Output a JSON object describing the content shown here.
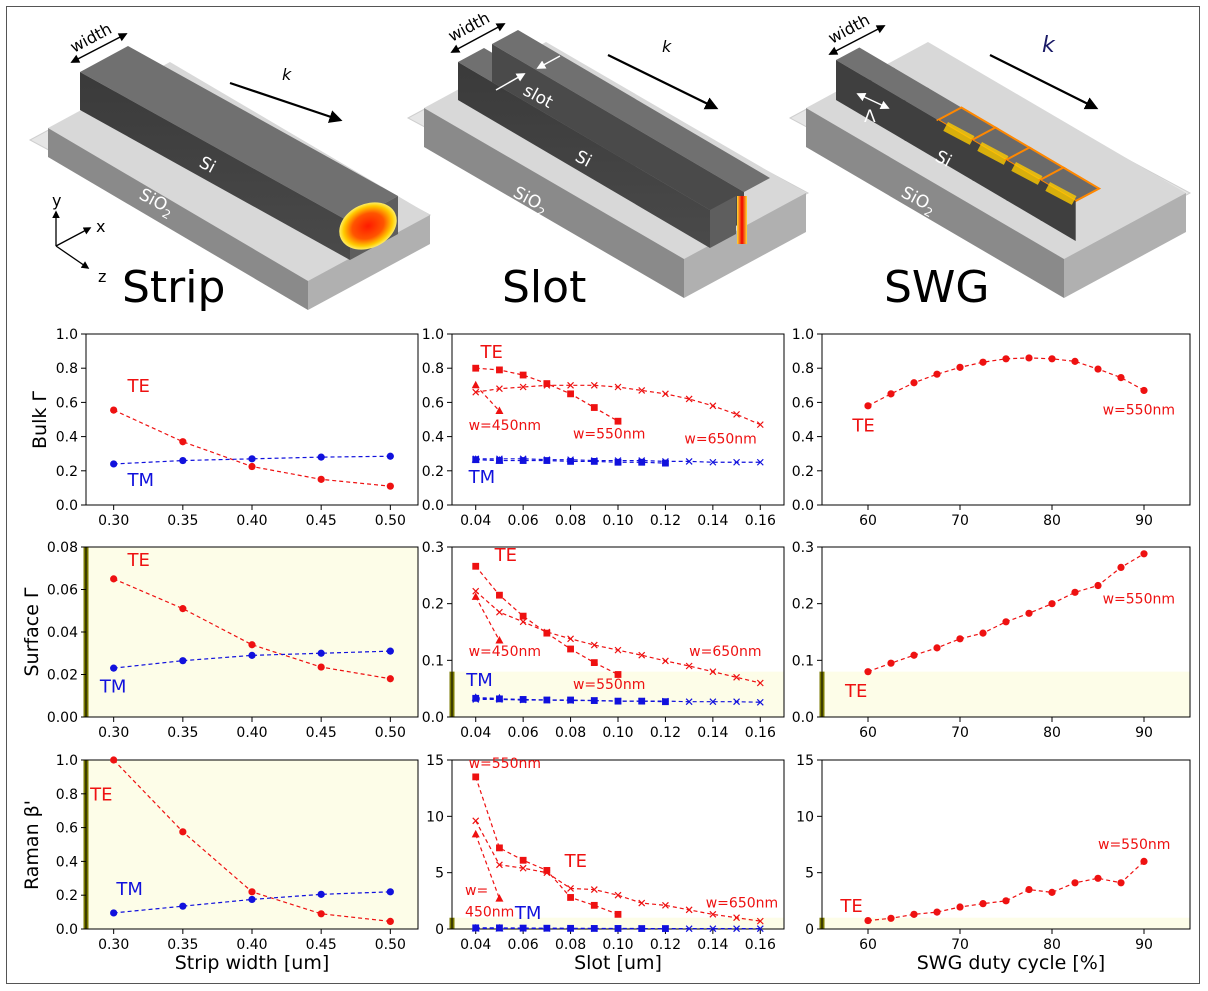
{
  "waveguide_titles": [
    "Strip",
    "Slot",
    "SWG"
  ],
  "geometry_labels": {
    "width": "width",
    "k": "k",
    "si": "Si",
    "sio2_base": "SiO",
    "sio2_sub": "2",
    "slot": "slot",
    "lambda": "Λ",
    "axis_x": "x",
    "axis_y": "y",
    "axis_z": "z"
  },
  "row_labels": [
    "Bulk Γ",
    "Surface Γ",
    "Raman β'"
  ],
  "column_xlabels": [
    "Strip width [um]",
    "Slot [um]",
    "SWG duty cycle [%]"
  ],
  "colors": {
    "te": "#ee1111",
    "tm": "#1111dd",
    "shade": "#fdfde8",
    "shade_edge": "#7a7a00",
    "wg": "#5b5b5b",
    "sub": "#9a9a9a"
  },
  "chart_data": [
    {
      "type": "line",
      "row": 0,
      "col": 0,
      "ylabel": "Bulk Γ",
      "xlabel": "",
      "xlim": [
        0.28,
        0.52
      ],
      "ylim": [
        0,
        1
      ],
      "xticks": [
        "0.30",
        "0.35",
        "0.40",
        "0.45",
        "0.50"
      ],
      "yticks": [
        "0.0",
        "0.2",
        "0.4",
        "0.6",
        "0.8",
        "1.0"
      ],
      "series": [
        {
          "pol": "te",
          "marker": "circle",
          "x": [
            0.3,
            0.35,
            0.4,
            0.45,
            0.5
          ],
          "y": [
            0.555,
            0.37,
            0.225,
            0.15,
            0.11
          ]
        },
        {
          "pol": "tm",
          "marker": "circle",
          "x": [
            0.3,
            0.35,
            0.4,
            0.45,
            0.5
          ],
          "y": [
            0.24,
            0.26,
            0.27,
            0.28,
            0.285
          ]
        }
      ],
      "annotations": [
        {
          "text": "TE",
          "pol": "te",
          "size": "big",
          "x": 0.31,
          "y": 0.66
        },
        {
          "text": "TM",
          "pol": "tm",
          "size": "big",
          "x": 0.31,
          "y": 0.11
        }
      ]
    },
    {
      "type": "line",
      "row": 0,
      "col": 1,
      "ylabel": "",
      "xlabel": "",
      "xlim": [
        0.03,
        0.17
      ],
      "ylim": [
        0,
        1
      ],
      "xticks": [
        "0.04",
        "0.06",
        "0.08",
        "0.10",
        "0.12",
        "0.14",
        "0.16"
      ],
      "yticks": [
        "0.0",
        "0.2",
        "0.4",
        "0.6",
        "0.8",
        "1.0"
      ],
      "series": [
        {
          "pol": "te",
          "marker": "triangle",
          "x": [
            0.04,
            0.05
          ],
          "y": [
            0.7,
            0.55
          ]
        },
        {
          "pol": "te",
          "marker": "square",
          "x": [
            0.04,
            0.05,
            0.06,
            0.07,
            0.08,
            0.09,
            0.1
          ],
          "y": [
            0.8,
            0.79,
            0.76,
            0.71,
            0.65,
            0.57,
            0.49
          ]
        },
        {
          "pol": "te",
          "marker": "x",
          "x": [
            0.04,
            0.05,
            0.06,
            0.07,
            0.08,
            0.09,
            0.1,
            0.11,
            0.12,
            0.13,
            0.14,
            0.15,
            0.16
          ],
          "y": [
            0.66,
            0.68,
            0.69,
            0.7,
            0.7,
            0.7,
            0.69,
            0.67,
            0.65,
            0.62,
            0.58,
            0.53,
            0.47
          ]
        },
        {
          "pol": "tm",
          "marker": "triangle",
          "x": [
            0.04,
            0.05
          ],
          "y": [
            0.265,
            0.26
          ]
        },
        {
          "pol": "tm",
          "marker": "square",
          "x": [
            0.04,
            0.05,
            0.06,
            0.07,
            0.08,
            0.09,
            0.1,
            0.11,
            0.12
          ],
          "y": [
            0.265,
            0.26,
            0.26,
            0.26,
            0.255,
            0.255,
            0.25,
            0.25,
            0.245
          ]
        },
        {
          "pol": "tm",
          "marker": "x",
          "x": [
            0.04,
            0.05,
            0.06,
            0.07,
            0.08,
            0.09,
            0.1,
            0.11,
            0.12,
            0.13,
            0.14,
            0.15,
            0.16
          ],
          "y": [
            0.27,
            0.27,
            0.27,
            0.265,
            0.265,
            0.26,
            0.26,
            0.26,
            0.255,
            0.255,
            0.25,
            0.25,
            0.25
          ]
        }
      ],
      "annotations": [
        {
          "text": "TE",
          "pol": "te",
          "size": "big",
          "x": 0.042,
          "y": 0.86
        },
        {
          "text": "TM",
          "pol": "tm",
          "size": "big",
          "x": 0.037,
          "y": 0.13
        },
        {
          "text": "w=450nm",
          "pol": "te",
          "size": "small",
          "x": 0.037,
          "y": 0.44
        },
        {
          "text": "w=550nm",
          "pol": "te",
          "size": "small",
          "x": 0.081,
          "y": 0.39
        },
        {
          "text": "w=650nm",
          "pol": "te",
          "size": "small",
          "x": 0.128,
          "y": 0.36
        }
      ]
    },
    {
      "type": "line",
      "row": 0,
      "col": 2,
      "ylabel": "",
      "xlabel": "",
      "xlim": [
        55,
        95
      ],
      "ylim": [
        0,
        1
      ],
      "xticks": [
        "60",
        "70",
        "80",
        "90"
      ],
      "yticks": [
        "0.0",
        "0.2",
        "0.4",
        "0.6",
        "0.8",
        "1.0"
      ],
      "series": [
        {
          "pol": "te",
          "marker": "circle",
          "x": [
            60,
            62.5,
            65,
            67.5,
            70,
            72.5,
            75,
            77.5,
            80,
            82.5,
            85,
            87.5,
            90
          ],
          "y": [
            0.58,
            0.65,
            0.715,
            0.765,
            0.805,
            0.835,
            0.855,
            0.86,
            0.855,
            0.84,
            0.795,
            0.745,
            0.67
          ]
        }
      ],
      "annotations": [
        {
          "text": "TE",
          "pol": "te",
          "size": "big",
          "x": 58.3,
          "y": 0.43
        },
        {
          "text": "w=550nm",
          "pol": "te",
          "size": "small",
          "x": 85.5,
          "y": 0.53
        }
      ]
    },
    {
      "type": "line",
      "row": 1,
      "col": 0,
      "ylabel": "Surface Γ",
      "xlabel": "",
      "xlim": [
        0.28,
        0.52
      ],
      "ylim": [
        0,
        0.08
      ],
      "xticks": [
        "0.30",
        "0.35",
        "0.40",
        "0.45",
        "0.50"
      ],
      "yticks": [
        "0.00",
        "0.02",
        "0.04",
        "0.06",
        "0.08"
      ],
      "shade_top": 0.08,
      "series": [
        {
          "pol": "te",
          "marker": "circle",
          "x": [
            0.3,
            0.35,
            0.4,
            0.45,
            0.5
          ],
          "y": [
            0.065,
            0.051,
            0.034,
            0.0235,
            0.018
          ]
        },
        {
          "pol": "tm",
          "marker": "circle",
          "x": [
            0.3,
            0.35,
            0.4,
            0.45,
            0.5
          ],
          "y": [
            0.023,
            0.0265,
            0.029,
            0.03,
            0.031
          ]
        }
      ],
      "annotations": [
        {
          "text": "TE",
          "pol": "te",
          "size": "big",
          "x": 0.31,
          "y": 0.071
        },
        {
          "text": "TM",
          "pol": "tm",
          "size": "big",
          "x": 0.29,
          "y": 0.0115
        }
      ]
    },
    {
      "type": "line",
      "row": 1,
      "col": 1,
      "ylabel": "",
      "xlabel": "",
      "xlim": [
        0.03,
        0.17
      ],
      "ylim": [
        0,
        0.3
      ],
      "xticks": [
        "0.04",
        "0.06",
        "0.08",
        "0.10",
        "0.12",
        "0.14",
        "0.16"
      ],
      "yticks": [
        "0.0",
        "0.1",
        "0.2",
        "0.3"
      ],
      "shade_top": 0.08,
      "series": [
        {
          "pol": "te",
          "marker": "triangle",
          "x": [
            0.04,
            0.05
          ],
          "y": [
            0.212,
            0.135
          ]
        },
        {
          "pol": "te",
          "marker": "square",
          "x": [
            0.04,
            0.05,
            0.06,
            0.07,
            0.08,
            0.09,
            0.1
          ],
          "y": [
            0.266,
            0.215,
            0.178,
            0.148,
            0.12,
            0.096,
            0.075
          ]
        },
        {
          "pol": "te",
          "marker": "x",
          "x": [
            0.04,
            0.05,
            0.06,
            0.07,
            0.08,
            0.09,
            0.1,
            0.11,
            0.12,
            0.13,
            0.14,
            0.15,
            0.16
          ],
          "y": [
            0.222,
            0.185,
            0.168,
            0.15,
            0.138,
            0.127,
            0.118,
            0.109,
            0.099,
            0.09,
            0.08,
            0.07,
            0.06
          ]
        },
        {
          "pol": "tm",
          "marker": "triangle",
          "x": [
            0.04,
            0.05
          ],
          "y": [
            0.034,
            0.033
          ]
        },
        {
          "pol": "tm",
          "marker": "square",
          "x": [
            0.04,
            0.05,
            0.06,
            0.07,
            0.08,
            0.09,
            0.1,
            0.11,
            0.12
          ],
          "y": [
            0.033,
            0.032,
            0.031,
            0.03,
            0.03,
            0.029,
            0.028,
            0.028,
            0.027
          ]
        },
        {
          "pol": "tm",
          "marker": "x",
          "x": [
            0.04,
            0.05,
            0.06,
            0.07,
            0.08,
            0.09,
            0.1,
            0.11,
            0.12,
            0.13,
            0.14,
            0.15,
            0.16
          ],
          "y": [
            0.031,
            0.031,
            0.03,
            0.03,
            0.029,
            0.029,
            0.028,
            0.028,
            0.028,
            0.027,
            0.027,
            0.027,
            0.026
          ]
        }
      ],
      "annotations": [
        {
          "text": "TE",
          "pol": "te",
          "size": "big",
          "x": 0.048,
          "y": 0.275
        },
        {
          "text": "TM",
          "pol": "tm",
          "size": "big",
          "x": 0.036,
          "y": 0.055
        },
        {
          "text": "w=450nm",
          "pol": "te",
          "size": "small",
          "x": 0.037,
          "y": 0.108
        },
        {
          "text": "w=550nm",
          "pol": "te",
          "size": "small",
          "x": 0.081,
          "y": 0.049
        },
        {
          "text": "w=650nm",
          "pol": "te",
          "size": "small",
          "x": 0.13,
          "y": 0.108
        }
      ]
    },
    {
      "type": "line",
      "row": 1,
      "col": 2,
      "ylabel": "",
      "xlabel": "",
      "xlim": [
        55,
        95
      ],
      "ylim": [
        0,
        0.3
      ],
      "xticks": [
        "60",
        "70",
        "80",
        "90"
      ],
      "yticks": [
        "0.0",
        "0.1",
        "0.2",
        "0.3"
      ],
      "shade_top": 0.08,
      "series": [
        {
          "pol": "te",
          "marker": "circle",
          "x": [
            60,
            62.5,
            65,
            67.5,
            70,
            72.5,
            75,
            77.5,
            80,
            82.5,
            85,
            87.5,
            90
          ],
          "y": [
            0.08,
            0.095,
            0.109,
            0.122,
            0.138,
            0.148,
            0.168,
            0.183,
            0.2,
            0.22,
            0.232,
            0.264,
            0.288
          ]
        }
      ],
      "annotations": [
        {
          "text": "TE",
          "pol": "te",
          "size": "big",
          "x": 57.5,
          "y": 0.035
        },
        {
          "text": "w=550nm",
          "pol": "te",
          "size": "small",
          "x": 85.5,
          "y": 0.2
        }
      ]
    },
    {
      "type": "line",
      "row": 2,
      "col": 0,
      "ylabel": "Raman β'",
      "xlabel": "Strip width [um]",
      "xlim": [
        0.28,
        0.52
      ],
      "ylim": [
        0,
        1
      ],
      "xticks": [
        "0.30",
        "0.35",
        "0.40",
        "0.45",
        "0.50"
      ],
      "yticks": [
        "0.0",
        "0.2",
        "0.4",
        "0.6",
        "0.8",
        "1.0"
      ],
      "shade_top": 1.0,
      "series": [
        {
          "pol": "te",
          "marker": "circle",
          "x": [
            0.3,
            0.35,
            0.4,
            0.45,
            0.5
          ],
          "y": [
            1.0,
            0.575,
            0.22,
            0.09,
            0.045
          ]
        },
        {
          "pol": "tm",
          "marker": "circle",
          "x": [
            0.3,
            0.35,
            0.4,
            0.45,
            0.5
          ],
          "y": [
            0.095,
            0.135,
            0.175,
            0.205,
            0.22
          ]
        }
      ],
      "annotations": [
        {
          "text": "TE",
          "pol": "te",
          "size": "big",
          "x": 0.283,
          "y": 0.76
        },
        {
          "text": "TM",
          "pol": "tm",
          "size": "big",
          "x": 0.302,
          "y": 0.2
        }
      ]
    },
    {
      "type": "line",
      "row": 2,
      "col": 1,
      "ylabel": "",
      "xlabel": "Slot [um]",
      "xlim": [
        0.03,
        0.17
      ],
      "ylim": [
        0,
        15
      ],
      "xticks": [
        "0.04",
        "0.06",
        "0.08",
        "0.10",
        "0.12",
        "0.14",
        "0.16"
      ],
      "yticks": [
        "0",
        "5",
        "10",
        "15"
      ],
      "shade_top": 1.0,
      "series": [
        {
          "pol": "te",
          "marker": "triangle",
          "x": [
            0.04,
            0.05
          ],
          "y": [
            8.4,
            2.7
          ]
        },
        {
          "pol": "te",
          "marker": "square",
          "x": [
            0.04,
            0.05,
            0.06,
            0.07,
            0.08,
            0.09,
            0.1
          ],
          "y": [
            13.5,
            7.2,
            6.1,
            5.2,
            2.8,
            2.1,
            1.3
          ]
        },
        {
          "pol": "te",
          "marker": "x",
          "x": [
            0.04,
            0.05,
            0.06,
            0.07,
            0.08,
            0.09,
            0.1,
            0.11,
            0.12,
            0.13,
            0.14,
            0.15,
            0.16
          ],
          "y": [
            9.6,
            5.7,
            5.4,
            5.0,
            3.6,
            3.5,
            3.0,
            2.3,
            2.1,
            1.7,
            1.3,
            1.0,
            0.7
          ]
        },
        {
          "pol": "tm",
          "marker": "triangle",
          "x": [
            0.04,
            0.05
          ],
          "y": [
            0.05,
            0.05
          ]
        },
        {
          "pol": "tm",
          "marker": "square",
          "x": [
            0.04,
            0.05,
            0.06,
            0.07,
            0.08,
            0.09,
            0.1,
            0.11,
            0.12
          ],
          "y": [
            0.1,
            0.1,
            0.08,
            0.07,
            0.06,
            0.05,
            0.05,
            0.04,
            0.04
          ]
        },
        {
          "pol": "tm",
          "marker": "x",
          "x": [
            0.04,
            0.05,
            0.06,
            0.07,
            0.08,
            0.09,
            0.1,
            0.11,
            0.12,
            0.13,
            0.14,
            0.15,
            0.16
          ],
          "y": [
            0.05,
            0.05,
            0.05,
            0.05,
            0.04,
            0.04,
            0.04,
            0.04,
            0.03,
            0.03,
            0.03,
            0.03,
            0.03
          ]
        }
      ],
      "annotations": [
        {
          "text": "w=550nm",
          "pol": "te",
          "size": "small",
          "x": 0.037,
          "y": 14.3
        },
        {
          "text": "TE",
          "pol": "te",
          "size": "big",
          "x": 0.0775,
          "y": 5.5
        },
        {
          "text": "TM",
          "pol": "tm",
          "size": "big",
          "x": 0.0565,
          "y": 0.9
        },
        {
          "text": "w=",
          "pol": "te",
          "size": "small",
          "x": 0.0355,
          "y": 3.0
        },
        {
          "text": "450nm",
          "pol": "te",
          "size": "small",
          "x": 0.0355,
          "y": 1.1
        },
        {
          "text": "w=650nm",
          "pol": "te",
          "size": "small",
          "x": 0.137,
          "y": 1.9
        }
      ]
    },
    {
      "type": "line",
      "row": 2,
      "col": 2,
      "ylabel": "",
      "xlabel": "SWG duty cycle [%]",
      "xlim": [
        55,
        95
      ],
      "ylim": [
        0,
        15
      ],
      "xticks": [
        "60",
        "70",
        "80",
        "90"
      ],
      "yticks": [
        "0",
        "5",
        "10",
        "15"
      ],
      "shade_top": 1.0,
      "series": [
        {
          "pol": "te",
          "marker": "circle",
          "x": [
            60,
            62.5,
            65,
            67.5,
            70,
            72.5,
            75,
            77.5,
            80,
            82.5,
            85,
            87.5,
            90
          ],
          "y": [
            0.75,
            0.95,
            1.3,
            1.5,
            1.95,
            2.25,
            2.5,
            3.5,
            3.25,
            4.1,
            4.5,
            4.1,
            6.0
          ]
        }
      ],
      "annotations": [
        {
          "text": "TE",
          "pol": "te",
          "size": "big",
          "x": 57,
          "y": 1.5
        },
        {
          "text": "w=550nm",
          "pol": "te",
          "size": "small",
          "x": 85,
          "y": 7.1
        }
      ]
    }
  ]
}
